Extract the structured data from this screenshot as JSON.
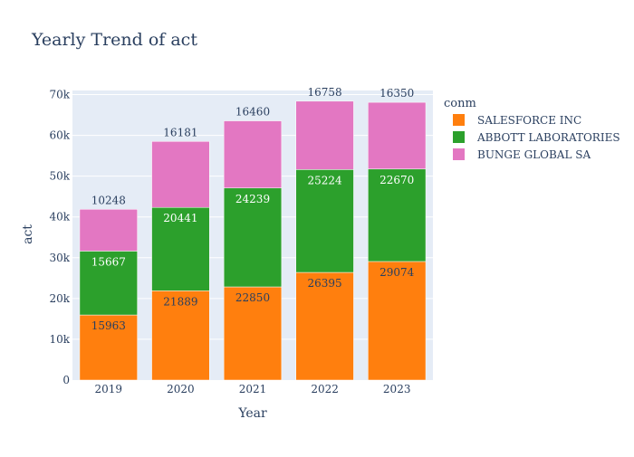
{
  "chart_data": {
    "type": "bar",
    "barmode": "stack",
    "title": "Yearly Trend of act",
    "xlabel": "Year",
    "ylabel": "act",
    "categories": [
      "2019",
      "2020",
      "2021",
      "2022",
      "2023"
    ],
    "ylim": [
      0,
      71000
    ],
    "yticks": [
      0,
      10000,
      20000,
      30000,
      40000,
      50000,
      60000,
      70000
    ],
    "ytick_labels": [
      "0",
      "10k",
      "20k",
      "30k",
      "40k",
      "50k",
      "60k",
      "70k"
    ],
    "grid": true,
    "legend": {
      "title": "conm",
      "placement": "right"
    },
    "series": [
      {
        "name": "SALESFORCE INC",
        "color": "#ff7f0e",
        "label_color": "#2a3f5f",
        "values": [
          15963,
          21889,
          22850,
          26395,
          29074
        ]
      },
      {
        "name": "ABBOTT LABORATORIES",
        "color": "#2ca02c",
        "label_color": "#ffffff",
        "values": [
          15667,
          20441,
          24239,
          25224,
          22670
        ]
      },
      {
        "name": "BUNGE GLOBAL SA",
        "color": "#e377c2",
        "label_color": "#2a3f5f",
        "values": [
          10248,
          16181,
          16460,
          16758,
          16350
        ]
      }
    ],
    "colors": {
      "plot_bg": "#e5ecf6",
      "grid": "#ffffff",
      "text": "#2a3f5f"
    }
  }
}
